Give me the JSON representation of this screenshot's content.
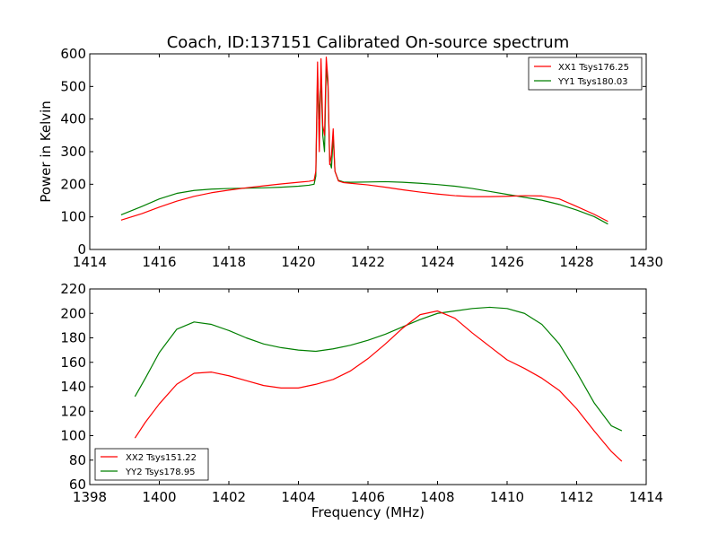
{
  "colors": {
    "red": "#ff0000",
    "green": "#007f00",
    "axis": "#000000",
    "background": "#ffffff"
  },
  "chart_data": [
    {
      "type": "line",
      "title": "Coach, ID:137151 Calibrated On-source spectrum",
      "xlabel": "",
      "ylabel": "Power in Kelvin",
      "xlim": [
        1414,
        1430
      ],
      "ylim": [
        0,
        600
      ],
      "xticks": [
        "1414",
        "1416",
        "1418",
        "1420",
        "1422",
        "1424",
        "1426",
        "1428",
        "1430"
      ],
      "yticks": [
        "0",
        "100",
        "200",
        "300",
        "400",
        "500",
        "600"
      ],
      "legend": "top-right",
      "series": [
        {
          "name": "XX1 Tsys176.25",
          "color": "#ff0000",
          "points": [
            [
              1414.9,
              90
            ],
            [
              1415.5,
              110
            ],
            [
              1416,
              130
            ],
            [
              1416.5,
              148
            ],
            [
              1417,
              163
            ],
            [
              1417.5,
              174
            ],
            [
              1418,
              182
            ],
            [
              1418.5,
              189
            ],
            [
              1419,
              195
            ],
            [
              1419.5,
              201
            ],
            [
              1420,
              206
            ],
            [
              1420.3,
              209
            ],
            [
              1420.45,
              212
            ],
            [
              1420.5,
              240
            ],
            [
              1420.55,
              575
            ],
            [
              1420.6,
              300
            ],
            [
              1420.65,
              585
            ],
            [
              1420.7,
              380
            ],
            [
              1420.75,
              350
            ],
            [
              1420.8,
              590
            ],
            [
              1420.85,
              520
            ],
            [
              1420.9,
              260
            ],
            [
              1420.95,
              290
            ],
            [
              1421.0,
              370
            ],
            [
              1421.05,
              240
            ],
            [
              1421.15,
              210
            ],
            [
              1421.3,
              205
            ],
            [
              1421.5,
              203
            ],
            [
              1422,
              198
            ],
            [
              1422.5,
              191
            ],
            [
              1423,
              183
            ],
            [
              1423.5,
              176
            ],
            [
              1424,
              170
            ],
            [
              1424.5,
              165
            ],
            [
              1425,
              162
            ],
            [
              1425.5,
              162
            ],
            [
              1426,
              163
            ],
            [
              1426.5,
              165
            ],
            [
              1427,
              164
            ],
            [
              1427.5,
              155
            ],
            [
              1428,
              132
            ],
            [
              1428.5,
              108
            ],
            [
              1428.9,
              86
            ]
          ]
        },
        {
          "name": "YY1 Tsys180.03",
          "color": "#007f00",
          "points": [
            [
              1414.9,
              106
            ],
            [
              1415.5,
              132
            ],
            [
              1416,
              155
            ],
            [
              1416.5,
              172
            ],
            [
              1417,
              181
            ],
            [
              1417.5,
              185
            ],
            [
              1418,
              187
            ],
            [
              1418.5,
              188
            ],
            [
              1419,
              189
            ],
            [
              1419.5,
              191
            ],
            [
              1420,
              194
            ],
            [
              1420.3,
              197
            ],
            [
              1420.45,
              200
            ],
            [
              1420.5,
              225
            ],
            [
              1420.55,
              540
            ],
            [
              1420.6,
              400
            ],
            [
              1420.65,
              530
            ],
            [
              1420.7,
              350
            ],
            [
              1420.75,
              300
            ],
            [
              1420.8,
              560
            ],
            [
              1420.85,
              500
            ],
            [
              1420.9,
              270
            ],
            [
              1420.95,
              250
            ],
            [
              1421.0,
              345
            ],
            [
              1421.05,
              240
            ],
            [
              1421.15,
              212
            ],
            [
              1421.3,
              207
            ],
            [
              1421.5,
              206
            ],
            [
              1422,
              207
            ],
            [
              1422.5,
              208
            ],
            [
              1423,
              206
            ],
            [
              1423.5,
              203
            ],
            [
              1424,
              199
            ],
            [
              1424.5,
              194
            ],
            [
              1425,
              187
            ],
            [
              1425.5,
              178
            ],
            [
              1426,
              169
            ],
            [
              1426.5,
              160
            ],
            [
              1427,
              151
            ],
            [
              1427.5,
              138
            ],
            [
              1428,
              121
            ],
            [
              1428.5,
              101
            ],
            [
              1428.9,
              78
            ]
          ]
        }
      ]
    },
    {
      "type": "line",
      "title": "",
      "xlabel": "Frequency (MHz)",
      "ylabel": "",
      "xlim": [
        1398,
        1414
      ],
      "ylim": [
        60,
        220
      ],
      "xticks": [
        "1398",
        "1400",
        "1402",
        "1404",
        "1406",
        "1408",
        "1410",
        "1412",
        "1414"
      ],
      "yticks": [
        "60",
        "80",
        "100",
        "120",
        "140",
        "160",
        "180",
        "200",
        "220"
      ],
      "legend": "bottom-left",
      "series": [
        {
          "name": "XX2 Tsys151.22",
          "color": "#ff0000",
          "points": [
            [
              1399.3,
              98
            ],
            [
              1399.6,
              111
            ],
            [
              1400,
              126
            ],
            [
              1400.5,
              142
            ],
            [
              1401,
              151
            ],
            [
              1401.5,
              152
            ],
            [
              1402,
              149
            ],
            [
              1402.5,
              145
            ],
            [
              1403,
              141
            ],
            [
              1403.5,
              139
            ],
            [
              1404,
              139
            ],
            [
              1404.5,
              142
            ],
            [
              1405,
              146
            ],
            [
              1405.5,
              153
            ],
            [
              1406,
              163
            ],
            [
              1406.5,
              175
            ],
            [
              1407,
              188
            ],
            [
              1407.5,
              199
            ],
            [
              1408,
              202
            ],
            [
              1408.5,
              196
            ],
            [
              1409,
              184
            ],
            [
              1409.5,
              173
            ],
            [
              1410,
              162
            ],
            [
              1410.5,
              155
            ],
            [
              1411,
              147
            ],
            [
              1411.5,
              137
            ],
            [
              1412,
              122
            ],
            [
              1412.5,
              104
            ],
            [
              1413,
              87
            ],
            [
              1413.3,
              79
            ]
          ]
        },
        {
          "name": "YY2 Tsys178.95",
          "color": "#007f00",
          "points": [
            [
              1399.3,
              132
            ],
            [
              1399.6,
              147
            ],
            [
              1400,
              168
            ],
            [
              1400.5,
              187
            ],
            [
              1401,
              193
            ],
            [
              1401.5,
              191
            ],
            [
              1402,
              186
            ],
            [
              1402.5,
              180
            ],
            [
              1403,
              175
            ],
            [
              1403.5,
              172
            ],
            [
              1404,
              170
            ],
            [
              1404.5,
              169
            ],
            [
              1405,
              171
            ],
            [
              1405.5,
              174
            ],
            [
              1406,
              178
            ],
            [
              1406.5,
              183
            ],
            [
              1407,
              189
            ],
            [
              1407.5,
              195
            ],
            [
              1408,
              200
            ],
            [
              1408.5,
              202
            ],
            [
              1409,
              204
            ],
            [
              1409.5,
              205
            ],
            [
              1410,
              204
            ],
            [
              1410.5,
              200
            ],
            [
              1411,
              191
            ],
            [
              1411.5,
              175
            ],
            [
              1412,
              152
            ],
            [
              1412.5,
              127
            ],
            [
              1413,
              108
            ],
            [
              1413.3,
              104
            ]
          ]
        }
      ]
    }
  ]
}
